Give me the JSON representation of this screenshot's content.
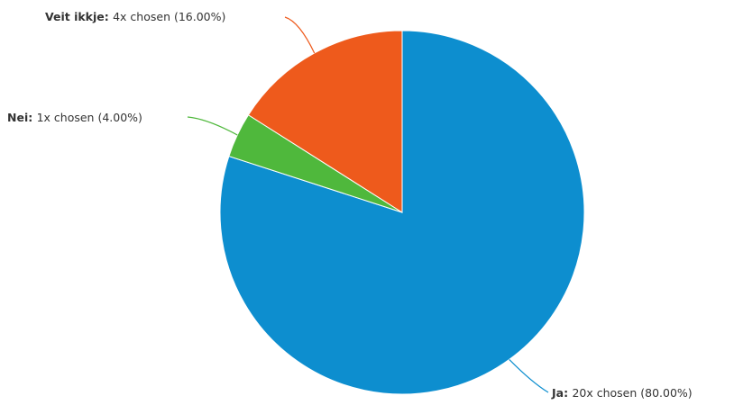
{
  "chart_data": {
    "type": "pie",
    "categories": [
      "Ja",
      "Nei",
      "Veit ikkje"
    ],
    "values": [
      20,
      1,
      4
    ],
    "percent": [
      80.0,
      4.0,
      16.0
    ],
    "colors": [
      "#0d8ecf",
      "#4fb83c",
      "#ee5a1c"
    ],
    "labels": [
      {
        "name": "Ja:",
        "detail": "20x chosen (80.00%)"
      },
      {
        "name": "Nei:",
        "detail": "1x chosen (4.00%)"
      },
      {
        "name": "Veit ikkje:",
        "detail": "4x chosen (16.00%)"
      }
    ],
    "legend": "none"
  }
}
